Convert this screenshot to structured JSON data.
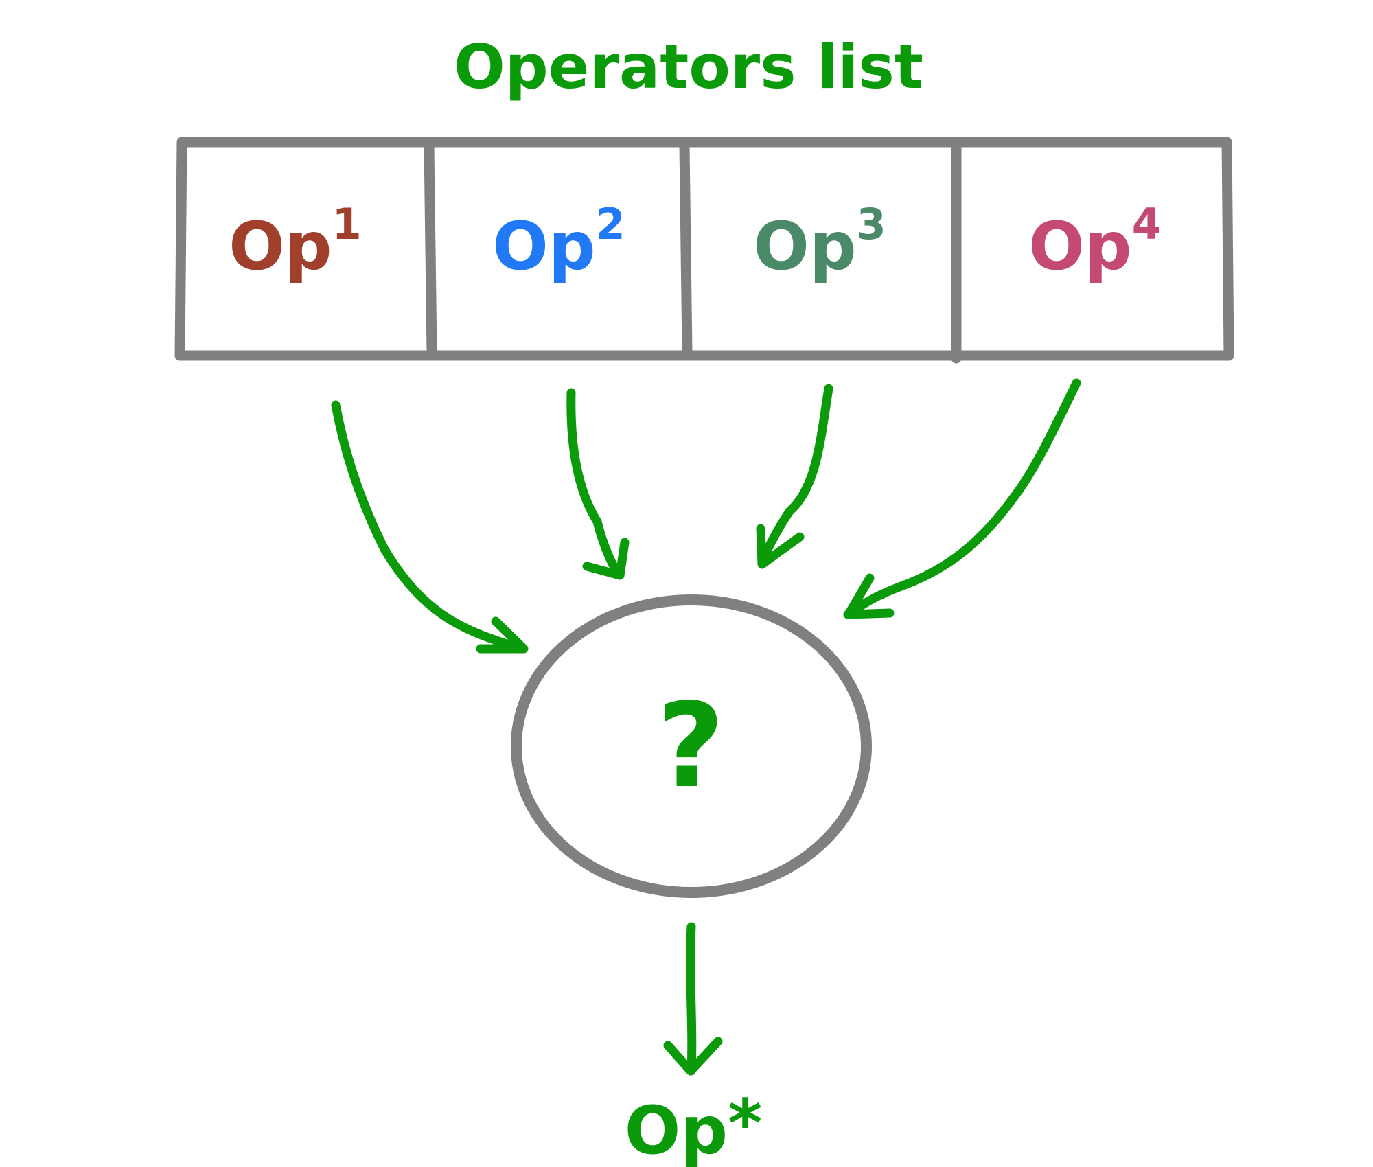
{
  "title": "Operators list",
  "operators": [
    {
      "base": "Op",
      "index": "1",
      "color": "#a0402c"
    },
    {
      "base": "Op",
      "index": "2",
      "color": "#2279f5"
    },
    {
      "base": "Op",
      "index": "3",
      "color": "#4a8a68"
    },
    {
      "base": "Op",
      "index": "4",
      "color": "#c44a72"
    }
  ],
  "combiner_symbol": "?",
  "output": {
    "base": "Op",
    "suffix": "*"
  },
  "colors": {
    "accent": "#0a9a0a",
    "outline": "#808080"
  },
  "icons": {
    "arrow": "curved-arrow-icon"
  }
}
